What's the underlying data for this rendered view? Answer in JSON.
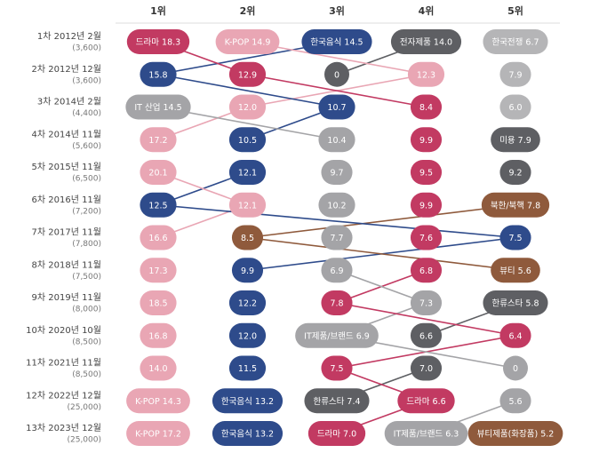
{
  "header": [
    "1위",
    "2위",
    "3위",
    "4위",
    "5위"
  ],
  "rows": [
    {
      "label": "1차 2012년 2월",
      "sample": "(3,600)",
      "cells": [
        {
          "text": "드라마 18.3",
          "color": "#c23a62"
        },
        {
          "text": "K-POP 14.9",
          "color": "#e9a6b4"
        },
        {
          "text": "한국음식 14.5",
          "color": "#2e4b8b"
        },
        {
          "text": "전자제품 14.0",
          "color": "#5e5f63"
        },
        {
          "text": "한국전쟁 6.7",
          "color": "#b5b5b7"
        }
      ]
    },
    {
      "label": "2차 2012년 12월",
      "sample": "(3,600)",
      "cells": [
        {
          "text": "15.8",
          "color": "#2e4b8b"
        },
        {
          "text": "12.9",
          "color": "#c23a62"
        },
        {
          "text": "0",
          "color": "#5e5f63"
        },
        {
          "text": "12.3",
          "color": "#e9a6b4"
        },
        {
          "text": "7.9",
          "color": "#b5b5b7"
        }
      ]
    },
    {
      "label": "3차 2014년 2월",
      "sample": "(4,400)",
      "cells": [
        {
          "text": "IT 산업 14.5",
          "color": "#a4a4a7"
        },
        {
          "text": "12.0",
          "color": "#e9a6b4"
        },
        {
          "text": "10.7",
          "color": "#2e4b8b"
        },
        {
          "text": "8.4",
          "color": "#c23a62"
        },
        {
          "text": "6.0",
          "color": "#b5b5b7"
        }
      ]
    },
    {
      "label": "4차 2014년 11월",
      "sample": "(5,600)",
      "cells": [
        {
          "text": "17.2",
          "color": "#e9a6b4"
        },
        {
          "text": "10.5",
          "color": "#2e4b8b"
        },
        {
          "text": "10.4",
          "color": "#a4a4a7"
        },
        {
          "text": "9.9",
          "color": "#c23a62"
        },
        {
          "text": "미용 7.9",
          "color": "#5e5f63"
        }
      ]
    },
    {
      "label": "5차 2015년 11월",
      "sample": "(6,500)",
      "cells": [
        {
          "text": "20.1",
          "color": "#e9a6b4"
        },
        {
          "text": "12.1",
          "color": "#2e4b8b"
        },
        {
          "text": "9.7",
          "color": "#a4a4a7"
        },
        {
          "text": "9.5",
          "color": "#c23a62"
        },
        {
          "text": "9.2",
          "color": "#5e5f63"
        }
      ]
    },
    {
      "label": "6차 2016년 11월",
      "sample": "(7,200)",
      "cells": [
        {
          "text": "12.5",
          "color": "#2e4b8b"
        },
        {
          "text": "12.1",
          "color": "#e9a6b4"
        },
        {
          "text": "10.2",
          "color": "#a4a4a7"
        },
        {
          "text": "9.9",
          "color": "#c23a62"
        },
        {
          "text": "북한/북핵 7.8",
          "color": "#8f5a3c"
        }
      ]
    },
    {
      "label": "7차 2017년 11월",
      "sample": "(7,800)",
      "cells": [
        {
          "text": "16.6",
          "color": "#e9a6b4"
        },
        {
          "text": "8.5",
          "color": "#8f5a3c"
        },
        {
          "text": "7.7",
          "color": "#a4a4a7"
        },
        {
          "text": "7.6",
          "color": "#c23a62"
        },
        {
          "text": "7.5",
          "color": "#2e4b8b"
        }
      ]
    },
    {
      "label": "8차 2018년 11월",
      "sample": "(7,500)",
      "cells": [
        {
          "text": "17.3",
          "color": "#e9a6b4"
        },
        {
          "text": "9.9",
          "color": "#2e4b8b"
        },
        {
          "text": "6.9",
          "color": "#a4a4a7"
        },
        {
          "text": "6.8",
          "color": "#c23a62"
        },
        {
          "text": "뷰티 5.6",
          "color": "#8f5a3c"
        }
      ]
    },
    {
      "label": "9차 2019년 11월",
      "sample": "(8,000)",
      "cells": [
        {
          "text": "18.5",
          "color": "#e9a6b4"
        },
        {
          "text": "12.2",
          "color": "#2e4b8b"
        },
        {
          "text": "7.8",
          "color": "#c23a62"
        },
        {
          "text": "7.3",
          "color": "#a4a4a7"
        },
        {
          "text": "한류스타 5.8",
          "color": "#5e5f63"
        }
      ]
    },
    {
      "label": "10차 2020년 10월",
      "sample": "(8,500)",
      "cells": [
        {
          "text": "16.8",
          "color": "#e9a6b4"
        },
        {
          "text": "12.0",
          "color": "#2e4b8b"
        },
        {
          "text": "IT제품/브랜드 6.9",
          "color": "#a4a4a7"
        },
        {
          "text": "6.6",
          "color": "#5e5f63"
        },
        {
          "text": "6.4",
          "color": "#c23a62"
        }
      ]
    },
    {
      "label": "11차 2021년 11월",
      "sample": "(8,500)",
      "cells": [
        {
          "text": "14.0",
          "color": "#e9a6b4"
        },
        {
          "text": "11.5",
          "color": "#2e4b8b"
        },
        {
          "text": "7.5",
          "color": "#c23a62"
        },
        {
          "text": "7.0",
          "color": "#5e5f63"
        },
        {
          "text": "0",
          "color": "#a4a4a7"
        }
      ]
    },
    {
      "label": "12차 2022년 12월",
      "sample": "(25,000)",
      "cells": [
        {
          "text": "K-POP 14.3",
          "color": "#e9a6b4"
        },
        {
          "text": "한국음식 13.2",
          "color": "#2e4b8b"
        },
        {
          "text": "한류스타 7.4",
          "color": "#5e5f63"
        },
        {
          "text": "드라마 6.6",
          "color": "#c23a62"
        },
        {
          "text": "5.6",
          "color": "#a4a4a7"
        }
      ]
    },
    {
      "label": "13차 2023년 12월",
      "sample": "(25,000)",
      "cells": [
        {
          "text": "K-POP 17.2",
          "color": "#e9a6b4"
        },
        {
          "text": "한국음식 13.2",
          "color": "#2e4b8b"
        },
        {
          "text": "드라마 7.0",
          "color": "#c23a62"
        },
        {
          "text": "IT제품/브랜드 6.3",
          "color": "#a4a4a7"
        },
        {
          "text": "뷰티제품(화장품) 5.2",
          "color": "#8f5a3c"
        }
      ]
    }
  ]
}
